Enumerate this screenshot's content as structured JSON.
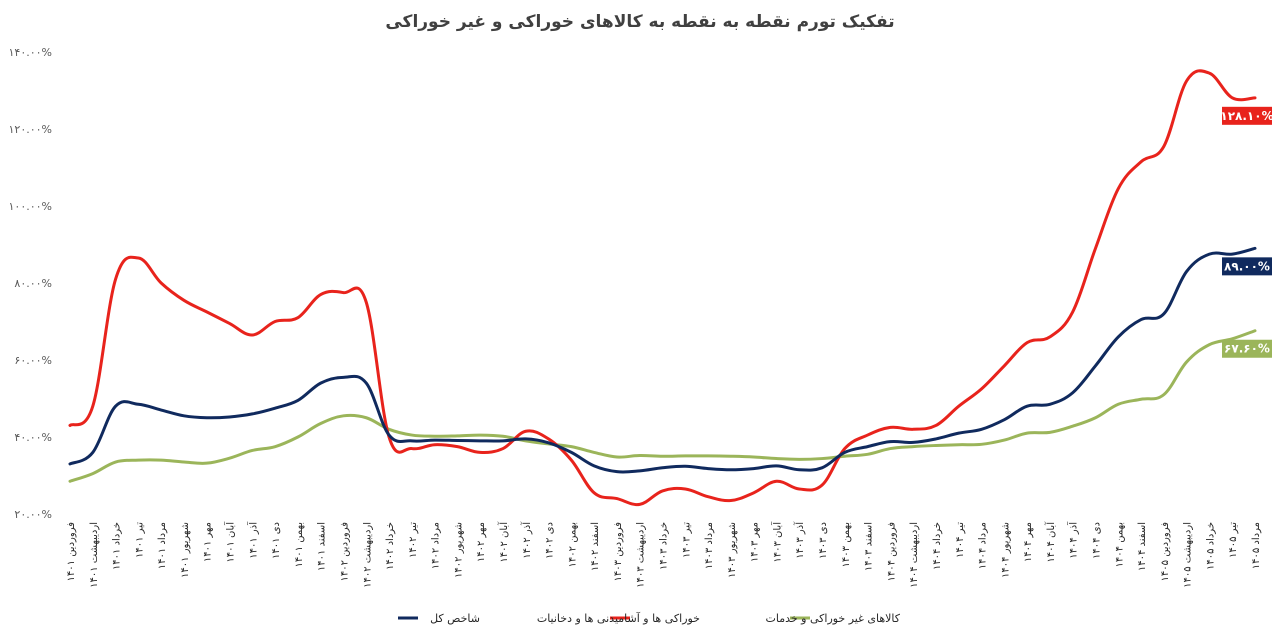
{
  "chart_data": {
    "type": "line",
    "title": "تفکیک تورم نقطه به نقطه به کالاهای خوراکی و غیر خوراکی",
    "xlabel": "",
    "ylabel": "",
    "ylim": [
      20,
      140
    ],
    "yticks": [
      "۱۴۰.۰۰%",
      "۱۲۰.۰۰%",
      "۱۰۰.۰۰%",
      "۸۰.۰۰%",
      "۶۰.۰۰%",
      "۴۰.۰۰%",
      "۲۰.۰۰%"
    ],
    "ytick_values": [
      140,
      120,
      100,
      80,
      60,
      40,
      20
    ],
    "grid": false,
    "legend_position": "bottom",
    "categories": [
      "فروردین ۱۴۰۱",
      "اردیبهشت ۱۴۰۱",
      "خرداد ۱۴۰۱",
      "تیر ۱۴۰۱",
      "مرداد ۱۴۰۱",
      "شهریور ۱۴۰۱",
      "مهر ۱۴۰۱",
      "آبان ۱۴۰۱",
      "آذر ۱۴۰۱",
      "دی ۱۴۰۱",
      "بهمن ۱۴۰۱",
      "اسفند ۱۴۰۱",
      "فروردین ۱۴۰۲",
      "اردیبهشت ۱۴۰۲",
      "خرداد ۱۴۰۲",
      "تیر ۱۴۰۲",
      "مرداد ۱۴۰۲",
      "شهریور ۱۴۰۲",
      "مهر ۱۴۰۲",
      "آبان ۱۴۰۲",
      "آذر ۱۴۰۲",
      "دی ۱۴۰۲",
      "بهمن ۱۴۰۲",
      "اسفند ۱۴۰۲",
      "فروردین ۱۴۰۳",
      "اردیبهشت ۱۴۰۳",
      "خرداد ۱۴۰۳",
      "تیر ۱۴۰۳",
      "مرداد ۱۴۰۳",
      "شهریور ۱۴۰۳",
      "مهر ۱۴۰۳",
      "آبان ۱۴۰۳",
      "آذر ۱۴۰۳",
      "دی ۱۴۰۳",
      "بهمن ۱۴۰۳",
      "اسفند ۱۴۰۳",
      "فروردین ۱۴۰۴",
      "اردیبهشت ۱۴۰۴",
      "خرداد ۱۴۰۴",
      "تیر ۱۴۰۴",
      "مرداد ۱۴۰۴",
      "شهریور ۱۴۰۴",
      "مهر ۱۴۰۴",
      "آبان ۱۴۰۴",
      "آذر ۱۴۰۴",
      "دی ۱۴۰۴",
      "بهمن ۱۴۰۴",
      "اسفند ۱۴۰۴",
      "فروردین ۱۴۰۵",
      "اردیبهشت ۱۴۰۵",
      "خرداد ۱۴۰۵",
      "تیر ۱۴۰۵",
      "مرداد ۱۴۰۵"
    ],
    "series": [
      {
        "name": "شاخص کل",
        "color": "#102a5e",
        "end_label": "۸۹.۰۰%",
        "values": [
          33,
          36,
          48,
          48.5,
          47,
          45.5,
          45,
          45.2,
          46,
          47.5,
          49.5,
          54,
          55.5,
          54,
          40.5,
          39,
          39.2,
          39.1,
          39,
          39,
          39.5,
          38.5,
          36,
          32.5,
          31,
          31.2,
          32,
          32.4,
          31.8,
          31.5,
          31.8,
          32.5,
          31.5,
          32,
          36,
          37.5,
          38.8,
          38.6,
          39.5,
          41,
          42,
          44.5,
          48,
          48.5,
          51.5,
          58.5,
          66,
          70.5,
          72,
          83,
          87.5,
          87.5,
          89
        ]
      },
      {
        "name": "خوراکی ها و آشامیدنی ها و دخانیات",
        "color": "#e8231c",
        "end_label": "۱۲۸.۱۰%",
        "values": [
          43,
          48,
          81,
          86.5,
          80,
          75.5,
          72.5,
          69.5,
          66.5,
          70,
          71,
          77,
          77.5,
          75,
          40,
          37,
          38,
          37.5,
          36,
          37,
          41.5,
          39.5,
          34,
          25.5,
          24,
          22.5,
          26,
          26.5,
          24.5,
          23.5,
          25.5,
          28.5,
          26.5,
          27.5,
          37,
          40.5,
          42.5,
          42,
          43,
          48,
          52.5,
          58.5,
          64.5,
          66,
          72.5,
          89,
          104.5,
          111.5,
          115.5,
          132.5,
          134.5,
          128.1,
          128.1
        ]
      },
      {
        "name": "کالاهای غیر خوراکی و خدمات",
        "color": "#9bb55a",
        "end_label": "۶۷.۶۰%",
        "values": [
          28.5,
          30.5,
          33.5,
          34,
          34,
          33.5,
          33.2,
          34.5,
          36.5,
          37.5,
          40,
          43.5,
          45.5,
          45,
          42,
          40.5,
          40.2,
          40.3,
          40.5,
          40.2,
          39,
          38.2,
          37.5,
          36,
          34.8,
          35.2,
          35,
          35.1,
          35.1,
          35,
          34.8,
          34.4,
          34.2,
          34.4,
          35,
          35.5,
          37,
          37.5,
          37.8,
          38,
          38.1,
          39.2,
          41,
          41.2,
          42.8,
          45,
          48.5,
          49.8,
          51,
          59.5,
          64,
          65.5,
          67.6
        ]
      }
    ]
  }
}
